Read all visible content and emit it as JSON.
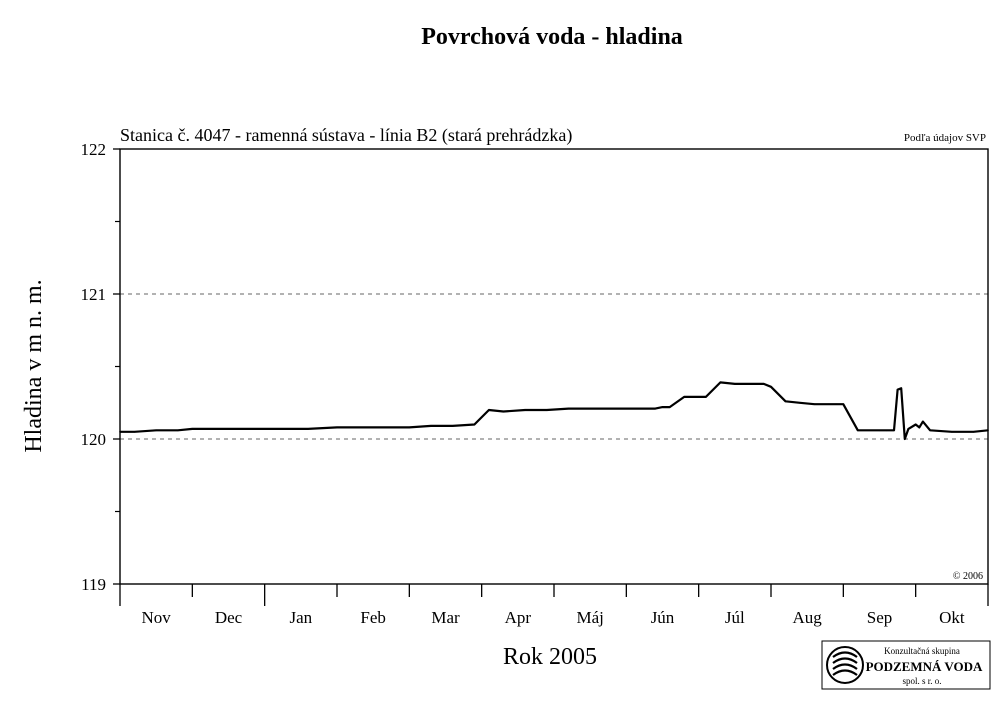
{
  "chart_data": {
    "type": "line",
    "title": "Povrchová voda - hladina",
    "subtitle": "Stanica č. 4047 - ramenná sústava - línia B2 (stará prehrádzka)",
    "source_note": "Podľa údajov SVP",
    "copyright": "© 2006",
    "xlabel": "Rok 2005",
    "ylabel": "Hladina v m n. m.",
    "ylim": [
      119,
      122
    ],
    "yticks": [
      "119",
      "120",
      "121",
      "122"
    ],
    "grid_y": [
      120,
      121
    ],
    "months": [
      "Nov",
      "Dec",
      "Jan",
      "Feb",
      "Mar",
      "Apr",
      "Máj",
      "Jún",
      "Júl",
      "Aug",
      "Sep",
      "Okt"
    ],
    "x_unit": "month index (0 = start of Nov)",
    "xlim": [
      0,
      12
    ],
    "series": [
      {
        "x": [
          0,
          0.2,
          0.5,
          0.8,
          1.0,
          1.3,
          1.6,
          2.0,
          2.3,
          2.6,
          3.0,
          3.3,
          3.6,
          4.0,
          4.3,
          4.6,
          4.9,
          5.1,
          5.3,
          5.6,
          5.9,
          6.2,
          6.5,
          6.8,
          7.1,
          7.4,
          7.5,
          7.6,
          7.8,
          8.0,
          8.1,
          8.3,
          8.5,
          8.7,
          8.9,
          9.0,
          9.2,
          9.4,
          9.6,
          9.8,
          9.9,
          10.0,
          10.2,
          10.5,
          10.6,
          10.7,
          10.75,
          10.8,
          10.85,
          10.9,
          11.0,
          11.05,
          11.1,
          11.2,
          11.5,
          11.8,
          12.0
        ],
        "y": [
          120.05,
          120.05,
          120.06,
          120.06,
          120.07,
          120.07,
          120.07,
          120.07,
          120.07,
          120.07,
          120.08,
          120.08,
          120.08,
          120.08,
          120.09,
          120.09,
          120.1,
          120.2,
          120.19,
          120.2,
          120.2,
          120.21,
          120.21,
          120.21,
          120.21,
          120.21,
          120.22,
          120.22,
          120.29,
          120.29,
          120.29,
          120.39,
          120.38,
          120.38,
          120.38,
          120.36,
          120.26,
          120.25,
          120.24,
          120.24,
          120.24,
          120.24,
          120.06,
          120.06,
          120.06,
          120.06,
          120.34,
          120.35,
          120.0,
          120.07,
          120.1,
          120.08,
          120.12,
          120.06,
          120.05,
          120.05,
          120.06
        ]
      }
    ]
  },
  "logo": {
    "line1": "Konzultačná skupina",
    "line2": "PODZEMNÁ VODA",
    "line3": "spol. s r. o."
  }
}
